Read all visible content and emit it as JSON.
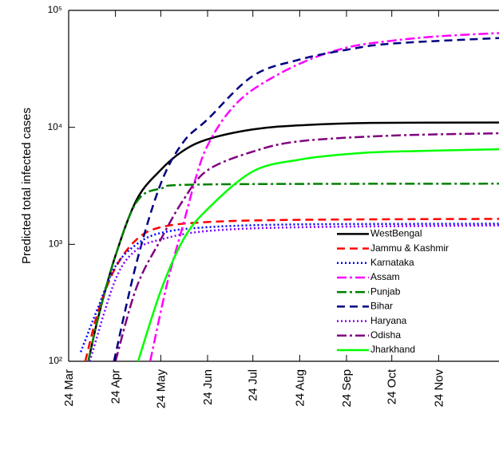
{
  "chart_data": {
    "type": "line",
    "y_label": "Predicted total infected cases",
    "log_scale_y": true,
    "legend": "lower right",
    "xlim": [
      0,
      285
    ],
    "xticks": [
      {
        "value": 0,
        "label": "24 Mar"
      },
      {
        "value": 31,
        "label": "24 Apr"
      },
      {
        "value": 61,
        "label": "24 May"
      },
      {
        "value": 92,
        "label": "24 Jun"
      },
      {
        "value": 122,
        "label": "24 Jul"
      },
      {
        "value": 153,
        "label": "24 Aug"
      },
      {
        "value": 184,
        "label": "24 Sep"
      },
      {
        "value": 214,
        "label": "24 Oct"
      },
      {
        "value": 245,
        "label": "24 Nov"
      }
    ],
    "ylim": [
      100,
      100000
    ],
    "yticks": [
      {
        "value": 100,
        "label": "10²"
      },
      {
        "value": 1000,
        "label": "10³"
      },
      {
        "value": 10000,
        "label": "10⁴"
      },
      {
        "value": 100000,
        "label": "10⁵"
      }
    ],
    "series": [
      {
        "name": "WestBengal",
        "color": "#000000",
        "style": "solid",
        "x": [
          13,
          20,
          31,
          45,
          60,
          75,
          92,
          122,
          153,
          200,
          285
        ],
        "values": [
          100,
          250,
          800,
          2400,
          4200,
          6200,
          7900,
          9600,
          10400,
          10900,
          11000
        ]
      },
      {
        "name": "Jammu & Kashmir",
        "color": "#ff0000",
        "style": "dashed",
        "x": [
          11,
          20,
          31,
          45,
          61,
          92,
          153,
          285
        ],
        "values": [
          100,
          280,
          630,
          1100,
          1400,
          1550,
          1620,
          1650
        ]
      },
      {
        "name": "Karnataka",
        "color": "#0000ff",
        "style": "dotted",
        "x": [
          8,
          20,
          31,
          45,
          61,
          92,
          153,
          285
        ],
        "values": [
          120,
          300,
          650,
          1000,
          1250,
          1400,
          1480,
          1500
        ]
      },
      {
        "name": "Assam",
        "color": "#ff00ff",
        "style": "dashdot",
        "x": [
          54,
          65,
          76,
          85,
          92,
          105,
          122,
          153,
          184,
          214,
          245,
          285
        ],
        "values": [
          100,
          450,
          1500,
          4000,
          7000,
          13000,
          21000,
          35000,
          48000,
          55000,
          60000,
          64000
        ]
      },
      {
        "name": "Punjab",
        "color": "#008000",
        "style": "dashdot",
        "x": [
          13,
          20,
          31,
          45,
          61,
          92,
          285
        ],
        "values": [
          100,
          250,
          800,
          2300,
          3000,
          3250,
          3300
        ]
      },
      {
        "name": "Bihar",
        "color": "#000080",
        "style": "dashed",
        "x": [
          30,
          45,
          61,
          76,
          92,
          122,
          153,
          184,
          214,
          285
        ],
        "values": [
          100,
          700,
          3300,
          7500,
          11700,
          27500,
          38000,
          46000,
          52000,
          58000
        ]
      },
      {
        "name": "Haryana",
        "color": "#8000ff",
        "style": "dotted",
        "x": [
          14,
          31,
          45,
          61,
          92,
          153,
          285
        ],
        "values": [
          100,
          500,
          900,
          1100,
          1300,
          1400,
          1450
        ]
      },
      {
        "name": "Odisha",
        "color": "#800080",
        "style": "dashdot",
        "x": [
          31,
          45,
          61,
          76,
          92,
          122,
          153,
          214,
          285
        ],
        "values": [
          100,
          430,
          1100,
          2400,
          4300,
          6200,
          7600,
          8500,
          8900
        ]
      },
      {
        "name": "Jharkhand",
        "color": "#00ff00",
        "style": "solid",
        "x": [
          46,
          61,
          76,
          92,
          122,
          153,
          184,
          214,
          285
        ],
        "values": [
          100,
          400,
          1100,
          2000,
          4200,
          5300,
          5900,
          6200,
          6500
        ]
      }
    ]
  }
}
